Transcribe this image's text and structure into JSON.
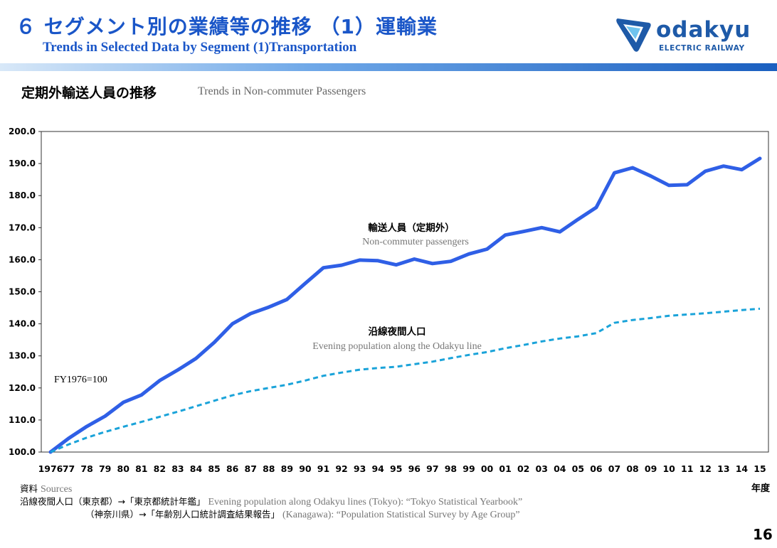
{
  "header": {
    "title_jp": "６ セグメント別の業績等の推移 （1）運輸業",
    "title_en": "Trends in Selected Data by Segment  (1)Transportation",
    "logo_text": "odakyu",
    "logo_sub": "ELECTRIC RAILWAY"
  },
  "section": {
    "title_jp": "定期外輸送人員の推移",
    "title_en": "Trends in Non-commuter Passengers"
  },
  "colors": {
    "title": "#1a56c8",
    "series_solid": "#2f5fe6",
    "series_dashed": "#1aa3d9"
  },
  "chart_data": {
    "type": "line",
    "title": "定期外輸送人員の推移",
    "note": "FY1976=100",
    "x_unit_label": "年度",
    "ylim": [
      100,
      200
    ],
    "yticks": [
      "100.0",
      "110.0",
      "120.0",
      "130.0",
      "140.0",
      "150.0",
      "160.0",
      "170.0",
      "180.0",
      "190.0",
      "200.0"
    ],
    "categories": [
      "1976",
      "77",
      "78",
      "79",
      "80",
      "81",
      "82",
      "83",
      "84",
      "85",
      "86",
      "87",
      "88",
      "89",
      "90",
      "91",
      "92",
      "93",
      "94",
      "95",
      "96",
      "97",
      "98",
      "99",
      "00",
      "01",
      "02",
      "03",
      "04",
      "05",
      "06",
      "07",
      "08",
      "09",
      "10",
      "11",
      "12",
      "13",
      "14",
      "15"
    ],
    "series": [
      {
        "name": "輸送人員（定期外）",
        "name_en": "Non-commuter passengers",
        "style": "solid",
        "values": [
          100.0,
          104.3,
          108.0,
          111.2,
          115.5,
          117.8,
          122.3,
          125.6,
          129.2,
          134.2,
          140.0,
          143.2,
          145.2,
          147.6,
          152.6,
          157.5,
          158.3,
          159.9,
          159.7,
          158.4,
          160.2,
          158.8,
          159.5,
          161.8,
          163.3,
          167.7,
          168.8,
          170.0,
          168.7,
          172.6,
          176.3,
          187.1,
          188.7,
          186.1,
          183.2,
          183.4,
          187.6,
          189.2,
          188.1,
          191.6
        ]
      },
      {
        "name": "沿線夜間人口",
        "name_en": "Evening population along the Odakyu  line",
        "style": "dashed",
        "values": [
          100.0,
          102.4,
          104.5,
          106.3,
          107.9,
          109.4,
          111.0,
          112.6,
          114.3,
          116.0,
          117.7,
          119.0,
          120.0,
          121.0,
          122.3,
          123.8,
          124.8,
          125.7,
          126.2,
          126.6,
          127.4,
          128.2,
          129.3,
          130.3,
          131.2,
          132.4,
          133.4,
          134.5,
          135.4,
          136.1,
          137.1,
          140.3,
          141.2,
          141.8,
          142.5,
          142.9,
          143.3,
          143.8,
          144.3,
          144.7
        ]
      }
    ]
  },
  "sources": {
    "label_jp": "資料",
    "label_en": "Sources",
    "line1_jp": "沿線夜間人口（東京都）→「東京都統計年鑑」",
    "line1_en": "Evening population along Odakyu lines (Tokyo): “Tokyo Statistical Yearbook”",
    "line2_jp": "（神奈川県）→「年齢別人口統計調査結果報告」",
    "line2_en": "(Kanagawa): “Population Statistical Survey by Age Group”"
  },
  "page_number": "16"
}
